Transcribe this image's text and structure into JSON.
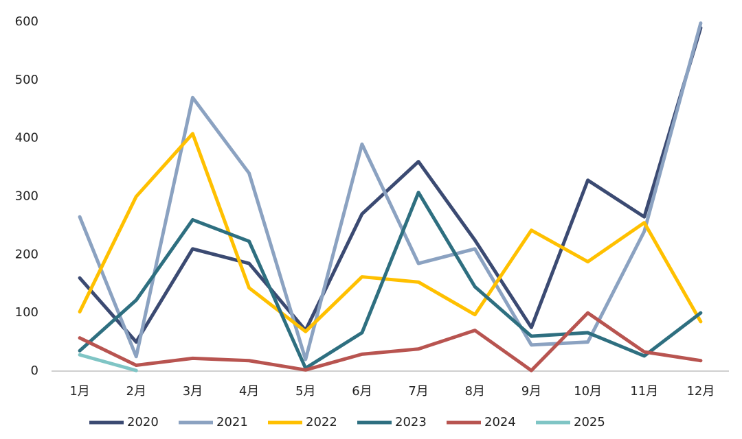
{
  "chart_data": {
    "type": "line",
    "categories": [
      "1月",
      "2月",
      "3月",
      "4月",
      "5月",
      "6月",
      "7月",
      "8月",
      "9月",
      "10月",
      "11月",
      "12月"
    ],
    "series": [
      {
        "name": "2020",
        "color": "#3b4a72",
        "values": [
          160,
          50,
          210,
          185,
          70,
          270,
          360,
          225,
          75,
          328,
          265,
          590
        ]
      },
      {
        "name": "2021",
        "color": "#8ba2c1",
        "values": [
          265,
          25,
          470,
          340,
          20,
          390,
          185,
          210,
          45,
          50,
          240,
          598
        ]
      },
      {
        "name": "2022",
        "color": "#ffc000",
        "values": [
          102,
          300,
          408,
          143,
          68,
          162,
          153,
          97,
          242,
          188,
          255,
          85
        ]
      },
      {
        "name": "2023",
        "color": "#2e6f80",
        "values": [
          35,
          122,
          260,
          223,
          5,
          66,
          307,
          145,
          60,
          66,
          26,
          100
        ]
      },
      {
        "name": "2024",
        "color": "#b85450",
        "values": [
          57,
          10,
          22,
          18,
          2,
          29,
          38,
          70,
          1,
          100,
          33,
          18
        ]
      },
      {
        "name": "2025",
        "color": "#7fc5c5",
        "values": [
          28,
          1,
          null,
          null,
          null,
          null,
          null,
          null,
          null,
          null,
          null,
          null
        ]
      }
    ],
    "ylim": [
      0,
      600
    ],
    "yticks": [
      0,
      100,
      200,
      300,
      400,
      500,
      600
    ],
    "grid": false,
    "legend": "bottom"
  }
}
